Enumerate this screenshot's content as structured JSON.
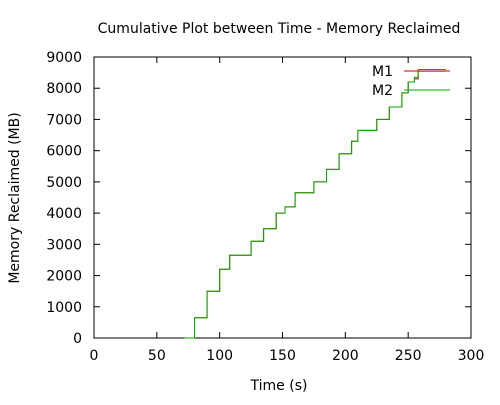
{
  "chart_data": {
    "type": "line",
    "title": "Cumulative Plot between Time - Memory Reclaimed",
    "xlabel": "Time (s)",
    "ylabel": "Memory Reclaimed (MB)",
    "xlim": [
      0,
      300
    ],
    "ylim": [
      0,
      9000
    ],
    "xticks": [
      0,
      50,
      100,
      150,
      200,
      250,
      300
    ],
    "yticks": [
      0,
      1000,
      2000,
      3000,
      4000,
      5000,
      6000,
      7000,
      8000,
      9000
    ],
    "xtick_labels": [
      "0",
      "50",
      "100",
      "150",
      "200",
      "250",
      "300"
    ],
    "ytick_labels": [
      "0",
      "1000",
      "2000",
      "3000",
      "4000",
      "5000",
      "6000",
      "7000",
      "8000",
      "9000"
    ],
    "grid": false,
    "legend_position": "top-right",
    "series": [
      {
        "name": "M1",
        "color": "#cc0000",
        "x": [
          72,
          80,
          90,
          100,
          108,
          112,
          118,
          125,
          135,
          145,
          152,
          160,
          168,
          175,
          185,
          195,
          205,
          210,
          218,
          225,
          235,
          245,
          250,
          255,
          258,
          265,
          280
        ],
        "y": [
          0,
          650,
          1500,
          2200,
          2650,
          2650,
          2650,
          3100,
          3500,
          4000,
          4200,
          4650,
          4650,
          5000,
          5400,
          5900,
          6300,
          6650,
          6650,
          7000,
          7400,
          7850,
          8200,
          8300,
          8550,
          8550,
          8550
        ]
      },
      {
        "name": "M2",
        "color": "#00aa00",
        "x": [
          72,
          80,
          90,
          100,
          108,
          112,
          118,
          125,
          135,
          145,
          152,
          160,
          168,
          175,
          185,
          195,
          205,
          210,
          218,
          225,
          235,
          245,
          250,
          255,
          258,
          265,
          270,
          280
        ],
        "y": [
          0,
          650,
          1500,
          2200,
          2650,
          2650,
          2650,
          3100,
          3500,
          4000,
          4200,
          4650,
          4650,
          5000,
          5400,
          5900,
          6300,
          6650,
          6650,
          7000,
          7400,
          7850,
          8200,
          8350,
          8600,
          8600,
          8600,
          8600
        ]
      }
    ]
  }
}
